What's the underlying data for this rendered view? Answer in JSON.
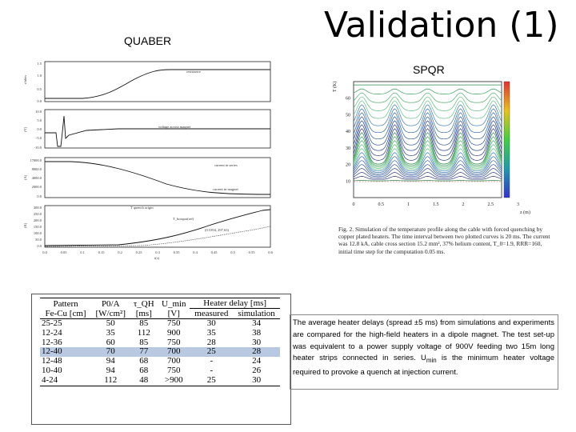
{
  "title": "Validation (1)",
  "quaber_label": "QUABER",
  "spqr_label": "SPQR",
  "quaber_plots": {
    "panel1": {
      "ylabel": "r/ohm",
      "yticks": [
        "1.5",
        "1.0",
        "0.5",
        "0.0"
      ],
      "legend": "resistance"
    },
    "panel2": {
      "ylabel": "(V)",
      "yticks": [
        "10.0",
        "5.0",
        "0.0",
        "-5.0",
        "-10.0"
      ],
      "legend": "voltage across magnet"
    },
    "panel3": {
      "ylabel": "(A)",
      "yticks": [
        "17000.0",
        "8000.0",
        "4000.0",
        "2000.0",
        "0.0"
      ],
      "legends": [
        "current in series",
        "current in magnet"
      ]
    },
    "panel4": {
      "ylabel": "(K)",
      "yticks": [
        "300.0",
        "250.0",
        "200.0",
        "150.0",
        "100.0",
        "50.0",
        "0.0"
      ],
      "legends": [
        "T quench origin",
        "T_hotspot(ref)"
      ],
      "annotation": "(0.5394, 297.63)"
    },
    "xticks": [
      "0.0",
      "0.05",
      "0.1",
      "0.15",
      "0.2",
      "0.25",
      "0.3",
      "0.35",
      "0.4",
      "0.45",
      "0.5",
      "0.55",
      "0.6"
    ],
    "xlabel": "t(s)"
  },
  "spqr_plot": {
    "ylabel": "T (K)",
    "yticks": [
      "60",
      "50",
      "40",
      "30",
      "20",
      "10"
    ],
    "xticks": [
      "0",
      "0.5",
      "1",
      "1.5",
      "2",
      "2.5",
      "3"
    ],
    "xlabel": "z (m)"
  },
  "caption": "Fig. 2. Simulation of the temperature profile along the cable with forced quenching by copper plated heaters. The time interval between two plotted curves is 20 ms. The current was 12.8 kA, cable cross section 15.2 mm², 37% helium content, T_0=1.9, RRR=160, initial time step for the computation 0.05 ms.",
  "table": {
    "headers": {
      "pattern": "Pattern",
      "pattern2": "Fe-Cu [cm]",
      "p0a": "P0/A",
      "p0a2": "[W/cm²]",
      "tau": "τ_QH",
      "tau2": "[ms]",
      "umin": "U_min",
      "umin2": "[V]",
      "delay": "Heater delay [ms]",
      "measured": "measured",
      "simulation": "simulation"
    },
    "rows": [
      [
        "25-25",
        "50",
        "85",
        "750",
        "30",
        "34"
      ],
      [
        "12-24",
        "35",
        "112",
        "900",
        "35",
        "38"
      ],
      [
        "12-36",
        "60",
        "85",
        "750",
        "28",
        "30"
      ],
      [
        "12-40",
        "70",
        "77",
        "700",
        "25",
        "28"
      ],
      [
        "12-48",
        "94",
        "68",
        "700",
        "-",
        "24"
      ],
      [
        "10-40",
        "94",
        "68",
        "750",
        "-",
        "26"
      ],
      [
        "4-24",
        "112",
        "48",
        ">900",
        "25",
        "30"
      ]
    ],
    "highlight_row": 3
  },
  "paragraph": {
    "text1": "The average heater delays (spread ±5 ms) from simulations and experiments are compared for the high-field heaters in a dipole magnet. The test set-up was equivalent to a power supply voltage of 900V feeding two 15m long heater strips connected in series. U",
    "sub": "min",
    "text2": " is the minimum heater voltage required to provoke a quench at injection current."
  }
}
